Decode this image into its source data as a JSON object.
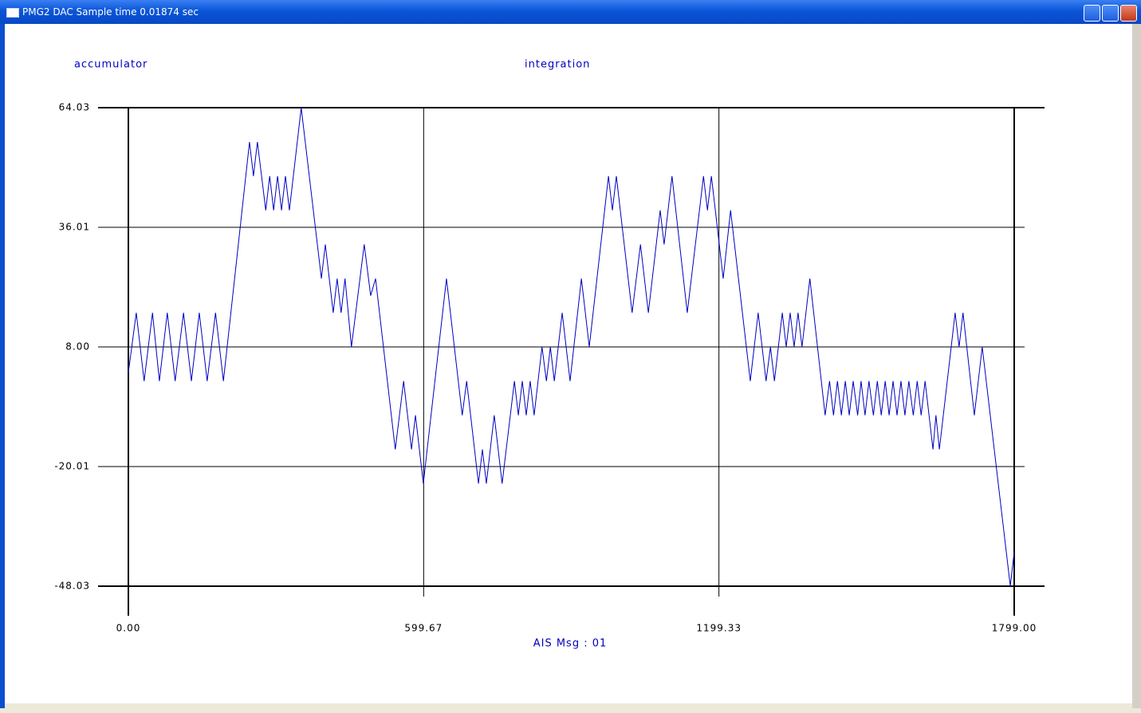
{
  "window": {
    "title": "PMG2 DAC Sample time 0.01874 sec"
  },
  "chart_data": {
    "type": "line",
    "title": "integration",
    "x_label": "AIS Msg : 01",
    "x": [
      0,
      16,
      32,
      49,
      63,
      79,
      95,
      112,
      128,
      144,
      160,
      177,
      193,
      246,
      254,
      262,
      279,
      287,
      295,
      303,
      311,
      319,
      327,
      351,
      392,
      400,
      416,
      424,
      432,
      440,
      453,
      479,
      492,
      502,
      542,
      559,
      575,
      583,
      599,
      646,
      678,
      687,
      711,
      719,
      727,
      743,
      759,
      784,
      792,
      800,
      808,
      816,
      824,
      840,
      849,
      857,
      865,
      881,
      897,
      920,
      936,
      975,
      983,
      991,
      1023,
      1040,
      1056,
      1080,
      1088,
      1104,
      1135,
      1168,
      1176,
      1184,
      1208,
      1223,
      1263,
      1279,
      1295,
      1304,
      1312,
      1328,
      1336,
      1344,
      1352,
      1360,
      1368,
      1384,
      1415,
      1424,
      1432,
      1440,
      1448,
      1456,
      1464,
      1472,
      1481,
      1488,
      1496,
      1504,
      1513,
      1521,
      1529,
      1537,
      1545,
      1553,
      1561,
      1569,
      1577,
      1585,
      1594,
      1602,
      1610,
      1618,
      1626,
      1634,
      1640,
      1647,
      1679,
      1687,
      1695,
      1718,
      1734,
      1791,
      1799
    ],
    "series": [
      {
        "name": "accumulator",
        "color": "#0000c0",
        "values": [
          2,
          16,
          0,
          16,
          0,
          16,
          0,
          16,
          0,
          16,
          0,
          16,
          0,
          56,
          48,
          56,
          40,
          48,
          40,
          48,
          40,
          48,
          40,
          64,
          24,
          32,
          16,
          24,
          16,
          24,
          8,
          32,
          20,
          24,
          -16,
          0,
          -16,
          -8,
          -24,
          24,
          -8,
          0,
          -24,
          -16,
          -24,
          -8,
          -24,
          0,
          -8,
          0,
          -8,
          0,
          -8,
          8,
          0,
          8,
          0,
          16,
          0,
          24,
          8,
          48,
          40,
          48,
          16,
          32,
          16,
          40,
          32,
          48,
          16,
          48,
          40,
          48,
          24,
          40,
          0,
          16,
          0,
          8,
          0,
          16,
          8,
          16,
          8,
          16,
          8,
          24,
          -8,
          0,
          -8,
          0,
          -8,
          0,
          -8,
          0,
          -8,
          0,
          -8,
          0,
          -8,
          0,
          -8,
          0,
          -8,
          0,
          -8,
          0,
          -8,
          0,
          -8,
          0,
          -8,
          0,
          -8,
          -16,
          -8,
          -16,
          16,
          8,
          16,
          -8,
          8,
          -48,
          -40
        ]
      }
    ],
    "xlim": [
      0,
      1799
    ],
    "xticks": [
      {
        "value": 0,
        "label": "0.00"
      },
      599.67,
      1199.33,
      {
        "value": 1799,
        "label": "1799.00"
      }
    ],
    "ylim": [
      -48.03,
      64.03
    ],
    "yticks": [
      64.03,
      36.01,
      {
        "value": 8,
        "label": "8.00"
      },
      -20.01,
      -48.03
    ],
    "grid": true
  }
}
